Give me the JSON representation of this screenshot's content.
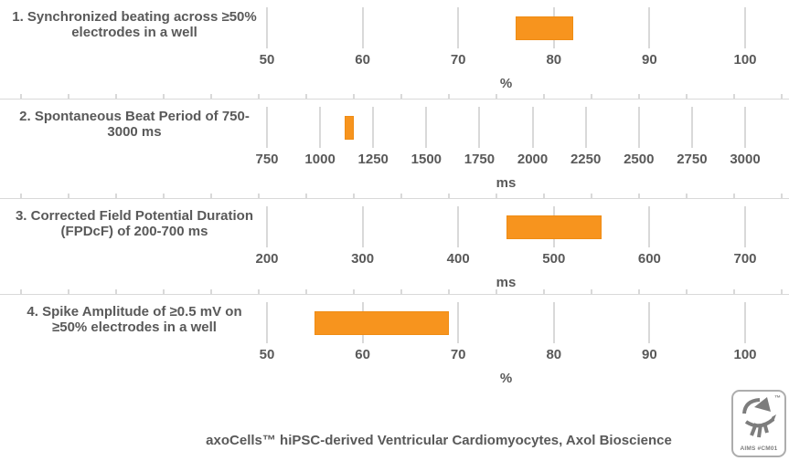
{
  "caption": "axoCells™ hiPSC-derived Ventricular Cardiomyocytes, Axol Bioscience",
  "logo": {
    "trademark": "™",
    "label": "AIMS #CM01"
  },
  "colors": {
    "bar": "#F7941E",
    "tick_line": "#D9D9D9",
    "divider": "#D9D9D9",
    "text": "#595959",
    "logo_gray": "#7D7D7D"
  },
  "chart_data": [
    {
      "type": "bar",
      "orientation": "horizontal-range",
      "title": "1. Synchronized beating across ≥50% electrodes in a well",
      "label_lines": [
        "1. Synchronized beating across ≥50%",
        "electrodes in a well"
      ],
      "x": {
        "min": 50,
        "max": 100,
        "ticks": [
          50,
          60,
          70,
          80,
          90,
          100
        ],
        "unit": "%"
      },
      "range": [
        76,
        82
      ],
      "grid": "vertical-ticks-only",
      "legend": "none"
    },
    {
      "type": "bar",
      "orientation": "horizontal-range",
      "title": "2. Spontaneous Beat Period of 750-3000 ms",
      "label_lines": [
        "2. Spontaneous Beat Period of 750-",
        "3000 ms"
      ],
      "x": {
        "min": 750,
        "max": 3000,
        "ticks": [
          750,
          1000,
          1250,
          1500,
          1750,
          2000,
          2250,
          2500,
          2750,
          3000
        ],
        "unit": "ms"
      },
      "range": [
        1115,
        1160
      ],
      "grid": "vertical-ticks-only",
      "legend": "none"
    },
    {
      "type": "bar",
      "orientation": "horizontal-range",
      "title": "3. Corrected Field Potential Duration (FPDcF) of 200-700 ms",
      "label_lines": [
        "3. Corrected Field Potential Duration",
        "(FPDcF) of 200-700 ms"
      ],
      "x": {
        "min": 200,
        "max": 700,
        "ticks": [
          200,
          300,
          400,
          500,
          600,
          700
        ],
        "unit": "ms"
      },
      "range": [
        450,
        550
      ],
      "grid": "vertical-ticks-only",
      "legend": "none"
    },
    {
      "type": "bar",
      "orientation": "horizontal-range",
      "title": "4. Spike Amplitude of ≥0.5 mV on ≥50% electrodes in a well",
      "label_lines": [
        "4. Spike Amplitude of ≥0.5 mV on",
        "≥50% electrodes in a well"
      ],
      "x": {
        "min": 50,
        "max": 100,
        "ticks": [
          50,
          60,
          70,
          80,
          90,
          100
        ],
        "unit": "%"
      },
      "range": [
        55,
        69
      ],
      "grid": "vertical-ticks-only",
      "legend": "none"
    }
  ]
}
